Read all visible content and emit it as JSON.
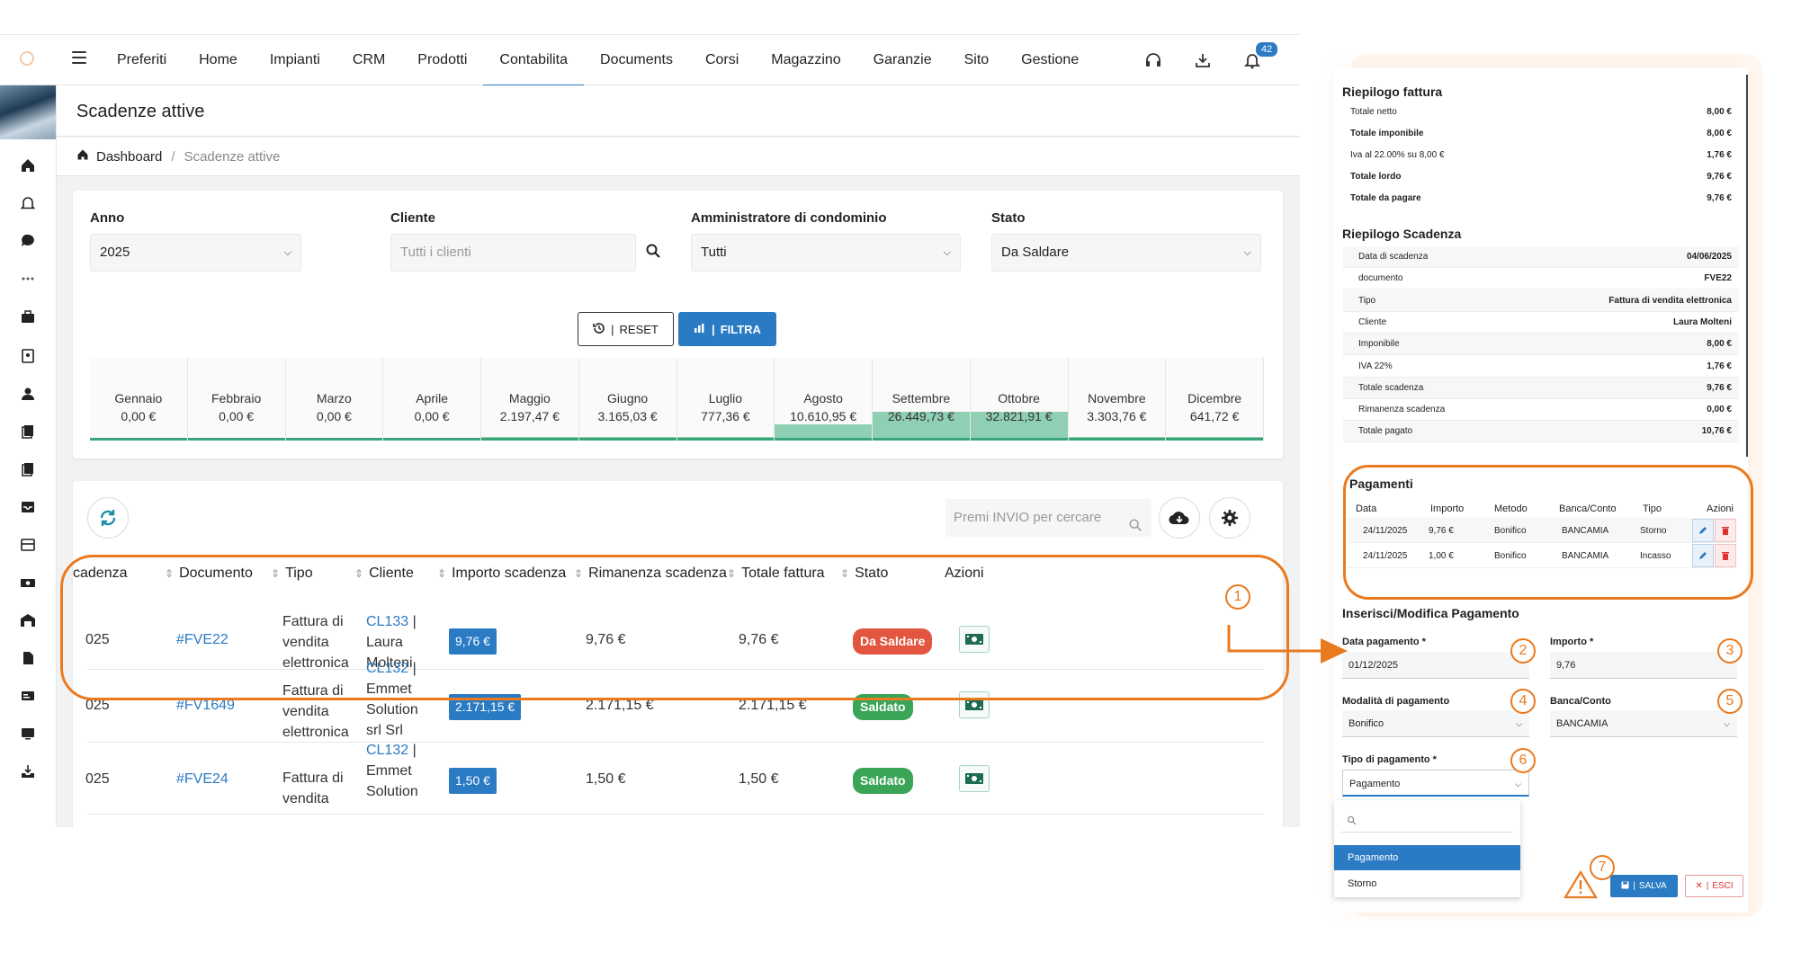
{
  "nav": {
    "items": [
      "Preferiti",
      "Home",
      "Impianti",
      "CRM",
      "Prodotti",
      "Contabilita",
      "Documents",
      "Corsi",
      "Magazzino",
      "Garanzie",
      "Sito",
      "Gestione"
    ],
    "active_index": 5,
    "notifications_count": "42"
  },
  "page": {
    "title": "Scadenze attive",
    "breadcrumb_home": "Dashboard",
    "breadcrumb_current": "Scadenze attive"
  },
  "filters": {
    "anno_label": "Anno",
    "anno_value": "2025",
    "cliente_label": "Cliente",
    "cliente_placeholder": "Tutti i clienti",
    "admin_label": "Amministratore di condominio",
    "admin_value": "Tutti",
    "stato_label": "Stato",
    "stato_value": "Da Saldare",
    "reset_label": "RESET",
    "filter_label": "FILTRA"
  },
  "months": [
    {
      "name": "Gennaio",
      "value": "0,00 €",
      "amount": 0
    },
    {
      "name": "Febbraio",
      "value": "0,00 €",
      "amount": 0
    },
    {
      "name": "Marzo",
      "value": "0,00 €",
      "amount": 0
    },
    {
      "name": "Aprile",
      "value": "0,00 €",
      "amount": 0
    },
    {
      "name": "Maggio",
      "value": "2.197,47 €",
      "amount": 2197.47
    },
    {
      "name": "Giugno",
      "value": "3.165,03 €",
      "amount": 3165.03
    },
    {
      "name": "Luglio",
      "value": "777,36 €",
      "amount": 777.36
    },
    {
      "name": "Agosto",
      "value": "10.610,95 €",
      "amount": 10610.95
    },
    {
      "name": "Settembre",
      "value": "26.449,73 €",
      "amount": 26449.73
    },
    {
      "name": "Ottobre",
      "value": "32.821,91 €",
      "amount": 32821.91
    },
    {
      "name": "Novembre",
      "value": "3.303,76 €",
      "amount": 3303.76
    },
    {
      "name": "Dicembre",
      "value": "641,72 €",
      "amount": 641.72
    }
  ],
  "table": {
    "search_placeholder": "Premi INVIO per cercare",
    "headers": [
      "cadenza",
      "Documento",
      "Tipo",
      "Cliente",
      "Importo scadenza",
      "Rimanenza scadenza",
      "Totale fattura",
      "Stato",
      "Azioni"
    ],
    "rows": [
      {
        "date": "025",
        "doc": "#FVE22",
        "tipo": [
          "Fattura di",
          "vendita",
          "elettronica"
        ],
        "client_code": "CL133",
        "client_name": [
          "Laura",
          "Molteni"
        ],
        "importo": "9,76 €",
        "rimanenza": "9,76 €",
        "totale": "9,76 €",
        "stato": "Da Saldare",
        "stato_color": "#e2553f"
      },
      {
        "date": "025",
        "doc": "#FV1649",
        "tipo": [
          "Fattura di",
          "vendita",
          "elettronica"
        ],
        "client_code": "CL132",
        "client_name": [
          "Emmet",
          "Solution",
          "srl Srl"
        ],
        "importo": "2.171,15 €",
        "rimanenza": "2.171,15 €",
        "totale": "2.171,15 €",
        "stato": "Saldato",
        "stato_color": "#3aa557"
      },
      {
        "date": "025",
        "doc": "#FVE24",
        "tipo": [
          "Fattura di",
          "vendita"
        ],
        "client_code": "CL132",
        "client_name": [
          "Emmet",
          "Solution"
        ],
        "importo": "1,50 €",
        "rimanenza": "1,50 €",
        "totale": "1,50 €",
        "stato": "Saldato",
        "stato_color": "#3aa557"
      }
    ]
  },
  "panel": {
    "invoice_title": "Riepilogo fattura",
    "invoice_rows": [
      {
        "label": "Totale netto",
        "value": "8,00 €",
        "bold": false
      },
      {
        "label": "Totale imponibile",
        "value": "8,00 €",
        "bold": true
      },
      {
        "label": "Iva al 22.00% su 8,00 €",
        "value": "1,76 €",
        "bold": false
      },
      {
        "label": "Totale lordo",
        "value": "9,76 €",
        "bold": true
      },
      {
        "label": "Totale da pagare",
        "value": "9,76 €",
        "bold": true
      }
    ],
    "due_title": "Riepilogo Scadenza",
    "due_rows": [
      {
        "label": "Data di scadenza",
        "value": "04/06/2025"
      },
      {
        "label": "documento",
        "value": "FVE22"
      },
      {
        "label": "Tipo",
        "value": "Fattura di vendita elettronica"
      },
      {
        "label": "Cliente",
        "value": "Laura Molteni"
      },
      {
        "label": "Imponibile",
        "value": "8,00 €"
      },
      {
        "label": "IVA 22%",
        "value": "1,76 €"
      },
      {
        "label": "Totale scadenza",
        "value": "9,76 €"
      },
      {
        "label": "Rimanenza scadenza",
        "value": "0,00 €"
      },
      {
        "label": "Totale pagato",
        "value": "10,76 €"
      }
    ],
    "payments_title": "Pagamenti",
    "payments_headers": [
      "Data",
      "Importo",
      "Metodo",
      "Banca/Conto",
      "Tipo",
      "Azioni"
    ],
    "payments": [
      {
        "data": "24/11/2025",
        "importo": "9,76 €",
        "metodo": "Bonifico",
        "banca": "BANCAMIA",
        "tipo": "Storno"
      },
      {
        "data": "24/11/2025",
        "importo": "1,00 €",
        "metodo": "Bonifico",
        "banca": "BANCAMIA",
        "tipo": "Incasso"
      }
    ],
    "form_title": "Inserisci/Modifica Pagamento",
    "date_label": "Data pagamento *",
    "date_value": "01/12/2025",
    "amount_label": "Importo *",
    "amount_value": "9,76",
    "method_label": "Modalità di pagamento",
    "method_value": "Bonifico",
    "bank_label": "Banca/Conto",
    "bank_value": "BANCAMIA",
    "type_label": "Tipo di pagamento *",
    "type_value": "Pagamento",
    "type_options": [
      "Pagamento",
      "Storno"
    ],
    "save_label": "SALVA",
    "exit_label": "ESCI"
  },
  "annotations": [
    "1",
    "2",
    "3",
    "4",
    "5",
    "6",
    "7"
  ],
  "colors": {
    "accent": "#2a7bc4",
    "annotation": "#ea7a1f",
    "month_fill": "#8fcfb4",
    "danger": "#e2553f",
    "success": "#3aa557"
  }
}
